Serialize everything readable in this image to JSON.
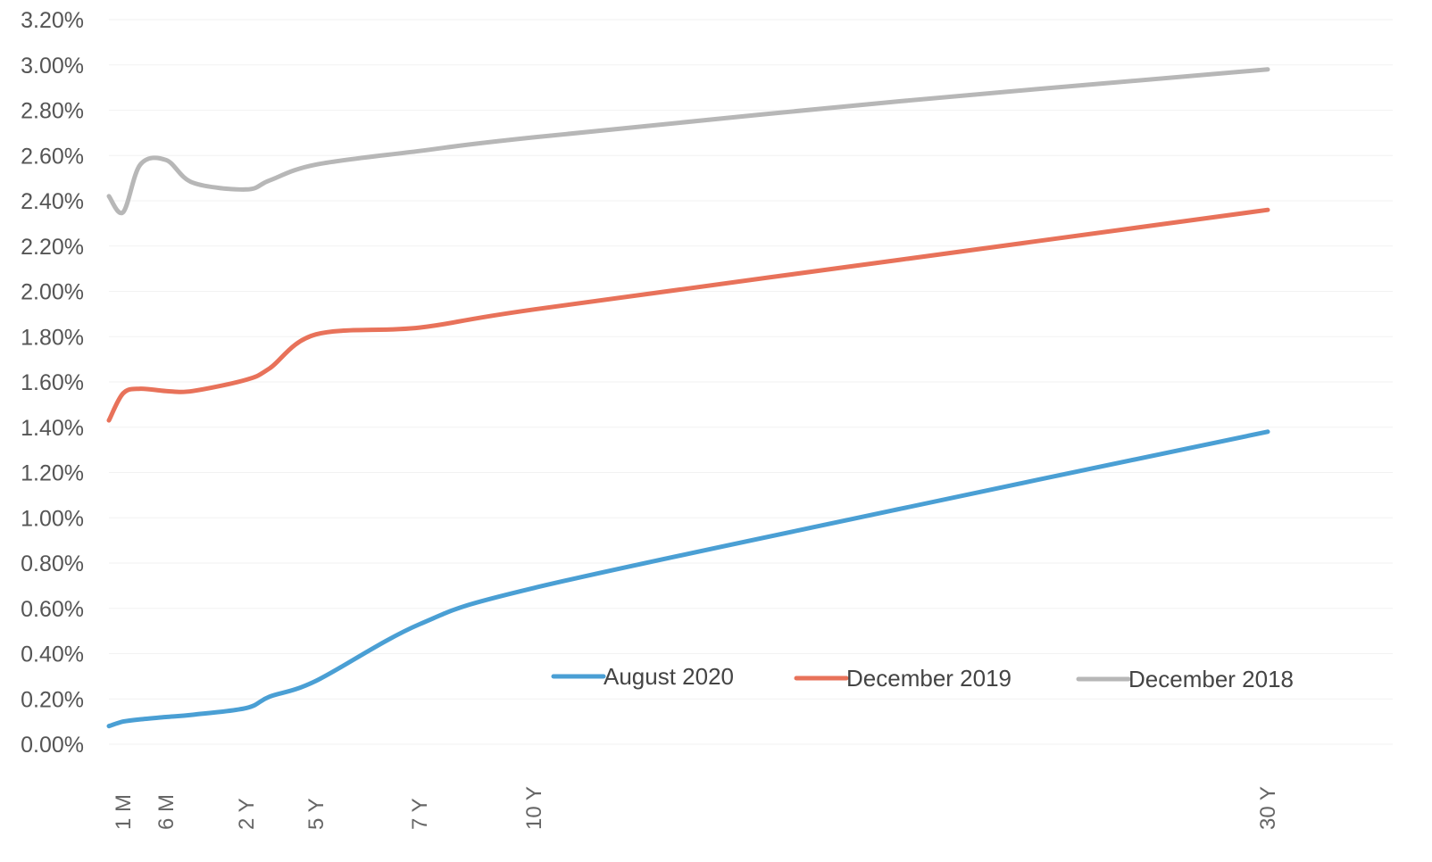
{
  "chart_data": {
    "type": "line",
    "title": "",
    "xlabel": "",
    "ylabel": "",
    "ylim": [
      0,
      3.2
    ],
    "y_tick_format": "percent_2dp",
    "y_ticks": [
      "0.00%",
      "0.20%",
      "0.40%",
      "0.60%",
      "0.80%",
      "1.00%",
      "1.20%",
      "1.40%",
      "1.60%",
      "1.80%",
      "2.00%",
      "2.20%",
      "2.40%",
      "2.60%",
      "2.80%",
      "3.00%",
      "3.20%"
    ],
    "grid": true,
    "legend_position": "bottom-right",
    "x_ticks": [
      {
        "label": "1 M",
        "tenor_years": 0.083
      },
      {
        "label": "6 M",
        "tenor_years": 0.5
      },
      {
        "label": "2 Y",
        "tenor_years": 2
      },
      {
        "label": "5 Y",
        "tenor_years": 5
      },
      {
        "label": "7 Y",
        "tenor_years": 7
      },
      {
        "label": "10 Y",
        "tenor_years": 10
      },
      {
        "label": "30 Y",
        "tenor_years": 30
      }
    ],
    "series": [
      {
        "name": "August 2020",
        "color": "#4a9fd4",
        "tenor_years": [
          0.0,
          0.083,
          0.25,
          0.5,
          1,
          2,
          3,
          5,
          7,
          10,
          20,
          30
        ],
        "values": [
          0.08,
          0.1,
          0.11,
          0.12,
          0.13,
          0.16,
          0.21,
          0.28,
          0.53,
          0.69,
          1.04,
          1.38
        ]
      },
      {
        "name": "December 2019",
        "color": "#e8725a",
        "tenor_years": [
          0.0,
          0.083,
          0.25,
          0.5,
          1,
          2,
          3,
          5,
          7,
          10,
          20,
          30
        ],
        "values": [
          1.43,
          1.55,
          1.57,
          1.56,
          1.56,
          1.61,
          1.66,
          1.81,
          1.84,
          1.92,
          2.14,
          2.36
        ]
      },
      {
        "name": "December 2018",
        "color": "#b7b7b7",
        "tenor_years": [
          0.0,
          0.083,
          0.25,
          0.5,
          1,
          2,
          3,
          5,
          7,
          10,
          20,
          30
        ],
        "values": [
          2.42,
          2.35,
          2.56,
          2.58,
          2.48,
          2.45,
          2.49,
          2.56,
          2.62,
          2.68,
          2.84,
          2.98
        ]
      }
    ]
  }
}
